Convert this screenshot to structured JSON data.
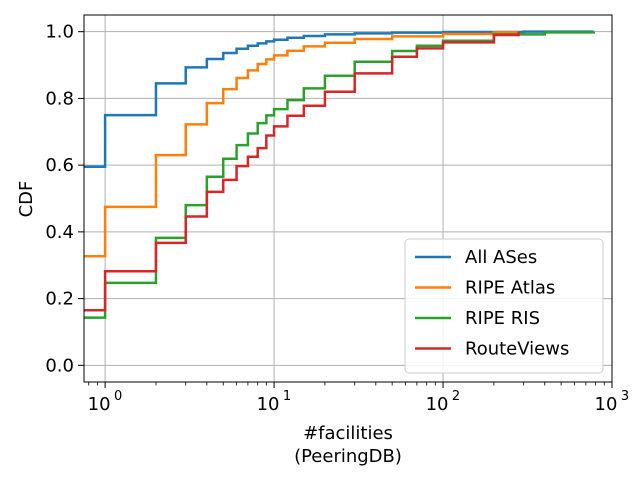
{
  "chart_data": {
    "type": "line",
    "step": true,
    "xscale": "log",
    "xlim": [
      0.75,
      1000
    ],
    "ylim": [
      -0.05,
      1.05
    ],
    "xlabel": [
      "#facilities",
      "(PeeringDB)"
    ],
    "ylabel": "CDF",
    "xticks": [
      {
        "value": 1,
        "label_base": "10",
        "label_exp": "0"
      },
      {
        "value": 10,
        "label_base": "10",
        "label_exp": "1"
      },
      {
        "value": 100,
        "label_base": "10",
        "label_exp": "2"
      },
      {
        "value": 1000,
        "label_base": "10",
        "label_exp": "3"
      }
    ],
    "yticks": [
      {
        "value": 0.0,
        "label": "0.0"
      },
      {
        "value": 0.2,
        "label": "0.2"
      },
      {
        "value": 0.4,
        "label": "0.4"
      },
      {
        "value": 0.6,
        "label": "0.6"
      },
      {
        "value": 0.8,
        "label": "0.8"
      },
      {
        "value": 1.0,
        "label": "1.0"
      }
    ],
    "grid": true,
    "legend_position": "bottom-right",
    "series": [
      {
        "name": "All ASes",
        "color": "#1f77b4",
        "points": [
          [
            0.75,
            0.595
          ],
          [
            1,
            0.75
          ],
          [
            2,
            0.845
          ],
          [
            3,
            0.893
          ],
          [
            4,
            0.918
          ],
          [
            5,
            0.936
          ],
          [
            6,
            0.949
          ],
          [
            7,
            0.958
          ],
          [
            8,
            0.965
          ],
          [
            9,
            0.971
          ],
          [
            10,
            0.976
          ],
          [
            12,
            0.982
          ],
          [
            15,
            0.987
          ],
          [
            20,
            0.992
          ],
          [
            30,
            0.995
          ],
          [
            50,
            0.997
          ],
          [
            100,
            0.999
          ],
          [
            300,
            1.0
          ],
          [
            780,
            1.0
          ]
        ]
      },
      {
        "name": "RIPE Atlas",
        "color": "#ff7f0e",
        "points": [
          [
            0.75,
            0.327
          ],
          [
            1,
            0.475
          ],
          [
            2,
            0.63
          ],
          [
            3,
            0.722
          ],
          [
            4,
            0.786
          ],
          [
            5,
            0.828
          ],
          [
            6,
            0.861
          ],
          [
            7,
            0.884
          ],
          [
            8,
            0.903
          ],
          [
            9,
            0.917
          ],
          [
            10,
            0.929
          ],
          [
            12,
            0.943
          ],
          [
            15,
            0.956
          ],
          [
            20,
            0.967
          ],
          [
            30,
            0.978
          ],
          [
            50,
            0.986
          ],
          [
            100,
            0.993
          ],
          [
            200,
            0.998
          ],
          [
            280,
            1.0
          ]
        ]
      },
      {
        "name": "RIPE RIS",
        "color": "#2ca02c",
        "points": [
          [
            0.75,
            0.143
          ],
          [
            1,
            0.247
          ],
          [
            2,
            0.382
          ],
          [
            3,
            0.48
          ],
          [
            4,
            0.565
          ],
          [
            5,
            0.619
          ],
          [
            6,
            0.66
          ],
          [
            7,
            0.695
          ],
          [
            8,
            0.726
          ],
          [
            9,
            0.749
          ],
          [
            10,
            0.768
          ],
          [
            12,
            0.795
          ],
          [
            15,
            0.83
          ],
          [
            20,
            0.868
          ],
          [
            30,
            0.91
          ],
          [
            50,
            0.942
          ],
          [
            70,
            0.958
          ],
          [
            100,
            0.973
          ],
          [
            200,
            0.992
          ],
          [
            400,
            0.998
          ],
          [
            780,
            1.0
          ]
        ]
      },
      {
        "name": "RouteViews",
        "color": "#d62728",
        "points": [
          [
            0.75,
            0.165
          ],
          [
            1,
            0.282
          ],
          [
            2,
            0.367
          ],
          [
            3,
            0.446
          ],
          [
            4,
            0.52
          ],
          [
            5,
            0.556
          ],
          [
            6,
            0.597
          ],
          [
            7,
            0.625
          ],
          [
            8,
            0.651
          ],
          [
            9,
            0.689
          ],
          [
            10,
            0.716
          ],
          [
            12,
            0.748
          ],
          [
            15,
            0.778
          ],
          [
            20,
            0.82
          ],
          [
            30,
            0.875
          ],
          [
            50,
            0.925
          ],
          [
            70,
            0.95
          ],
          [
            100,
            0.968
          ],
          [
            200,
            0.99
          ],
          [
            280,
            1.0
          ]
        ]
      }
    ]
  }
}
